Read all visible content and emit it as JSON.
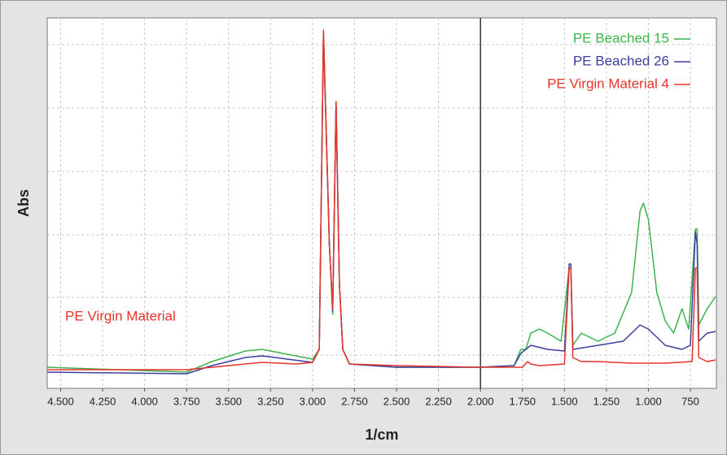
{
  "chart_data": {
    "type": "line",
    "xlabel": "1/cm",
    "ylabel": "Abs",
    "annotation": "PE Virgin Material",
    "annotation_color": "#e8332a",
    "xlim": [
      4580,
      595
    ],
    "ylim": [
      0,
      456
    ],
    "xticks": [
      {
        "value": 4500,
        "label": "4.500"
      },
      {
        "value": 4250,
        "label": "4.250"
      },
      {
        "value": 4000,
        "label": "4.000"
      },
      {
        "value": 3750,
        "label": "3.750"
      },
      {
        "value": 3500,
        "label": "3.500"
      },
      {
        "value": 3250,
        "label": "3.250"
      },
      {
        "value": 3000,
        "label": "3.000"
      },
      {
        "value": 2750,
        "label": "2.750"
      },
      {
        "value": 2500,
        "label": "2.500"
      },
      {
        "value": 2250,
        "label": "2.250"
      },
      {
        "value": 2000,
        "label": "2.000"
      },
      {
        "value": 1750,
        "label": "1.750"
      },
      {
        "value": 1500,
        "label": "1.500"
      },
      {
        "value": 1250,
        "label": "1.250"
      },
      {
        "value": 1000,
        "label": "1.000"
      },
      750
    ],
    "vline": 2000,
    "grid": true,
    "legend": "upper right",
    "series": [
      {
        "name": "PE Beached 15",
        "color": "#3cb44b",
        "x": [
          4580,
          3750,
          3600,
          3400,
          3300,
          3150,
          3000,
          2960,
          2935,
          2900,
          2880,
          2860,
          2840,
          2820,
          2780,
          2500,
          2000,
          1800,
          1760,
          1730,
          1700,
          1650,
          1600,
          1520,
          1472,
          1462,
          1450,
          1400,
          1300,
          1200,
          1100,
          1050,
          1030,
          1000,
          950,
          900,
          850,
          800,
          760,
          720,
          710,
          700,
          650,
          600
        ],
        "values": [
          26,
          20,
          33,
          46,
          48,
          42,
          36,
          48,
          438,
          178,
          91,
          353,
          128,
          48,
          30,
          26,
          26,
          28,
          48,
          48,
          68,
          73,
          68,
          58,
          148,
          148,
          53,
          68,
          58,
          68,
          118,
          218,
          228,
          208,
          118,
          83,
          68,
          98,
          73,
          196,
          196,
          78,
          98,
          113
        ]
      },
      {
        "name": "PE Beached 26",
        "color": "#3a3fa0",
        "x": [
          4580,
          3750,
          3600,
          3400,
          3300,
          3150,
          3000,
          2960,
          2935,
          2900,
          2880,
          2860,
          2840,
          2820,
          2780,
          2500,
          2000,
          1800,
          1760,
          1700,
          1600,
          1500,
          1472,
          1462,
          1450,
          1300,
          1150,
          1050,
          1000,
          900,
          800,
          750,
          720,
          710,
          700,
          650,
          600
        ],
        "values": [
          20,
          18,
          28,
          38,
          40,
          36,
          32,
          48,
          436,
          178,
          95,
          350,
          128,
          48,
          30,
          26,
          26,
          28,
          43,
          53,
          48,
          46,
          153,
          153,
          48,
          53,
          58,
          78,
          73,
          53,
          48,
          53,
          193,
          178,
          58,
          68,
          70
        ]
      },
      {
        "name": "PE Virgin Material 4",
        "color": "#e8332a",
        "x": [
          4580,
          3750,
          3500,
          3300,
          3100,
          3000,
          2960,
          2935,
          2900,
          2880,
          2860,
          2840,
          2820,
          2780,
          2500,
          2000,
          1750,
          1720,
          1700,
          1650,
          1500,
          1472,
          1462,
          1450,
          1400,
          1300,
          1100,
          900,
          740,
          720,
          710,
          700,
          650,
          600
        ],
        "values": [
          23,
          23,
          28,
          32,
          30,
          32,
          48,
          441,
          178,
          98,
          353,
          128,
          48,
          30,
          28,
          26,
          26,
          33,
          30,
          28,
          30,
          148,
          148,
          38,
          33,
          33,
          31,
          31,
          33,
          148,
          148,
          38,
          33,
          35
        ]
      }
    ]
  }
}
